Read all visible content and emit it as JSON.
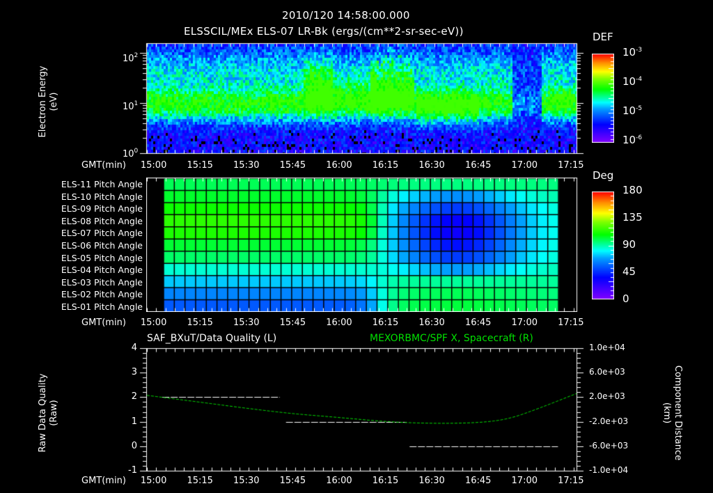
{
  "header": {
    "timestamp": "2010/120 14:58:00.000",
    "subtitle": "ELSSCIL/MEx ELS-07 LR-Bk  (ergs/(cm**2-sr-sec-eV))"
  },
  "time_axis": {
    "label": "GMT(min)",
    "ticks": [
      "15:00",
      "15:15",
      "15:30",
      "15:45",
      "16:00",
      "16:15",
      "16:30",
      "16:45",
      "17:00",
      "17:15"
    ]
  },
  "panel_energy": {
    "ylabel_line1": "Electron Energy",
    "ylabel_line2": "(eV)",
    "yticks": [
      {
        "base": "10",
        "exp": "2"
      },
      {
        "base": "10",
        "exp": "1"
      },
      {
        "base": "10",
        "exp": "0"
      }
    ],
    "colorbar": {
      "title": "DEF",
      "ticks": [
        {
          "base": "10",
          "exp": "-3"
        },
        {
          "base": "10",
          "exp": "-4"
        },
        {
          "base": "10",
          "exp": "-5"
        },
        {
          "base": "10",
          "exp": "-6"
        }
      ]
    }
  },
  "panel_pitch": {
    "rows": [
      "ELS-11 Pitch Angle",
      "ELS-10 Pitch Angle",
      "ELS-09 Pitch Angle",
      "ELS-08 Pitch Angle",
      "ELS-07 Pitch Angle",
      "ELS-06 Pitch Angle",
      "ELS-05 Pitch Angle",
      "ELS-04 Pitch Angle",
      "ELS-03 Pitch Angle",
      "ELS-02 Pitch Angle",
      "ELS-01 Pitch Angle"
    ],
    "colorbar": {
      "title": "Deg",
      "ticks": [
        "180",
        "135",
        "90",
        "45",
        "0"
      ]
    }
  },
  "panel_quality": {
    "left_title": "SAF_BXuT/Data Quality (L)",
    "right_title": "MEXORBMC/SPF X, Spacecraft (R)",
    "right_title_color": "#00e000",
    "ylabel_left_1": "Raw Data Quality",
    "ylabel_left_2": "(Raw)",
    "yticks_left": [
      "4",
      "3",
      "2",
      "1",
      "0",
      "-1"
    ],
    "ylabel_right_1": "Component Distance",
    "ylabel_right_2": "(km)",
    "yticks_right": [
      "1.0e+04",
      "6.0e+03",
      "2.0e+03",
      "-2.0e+03",
      "-6.0e+03",
      "-1.0e+04"
    ]
  },
  "chart_data": [
    {
      "type": "heatmap",
      "title": "ELSSCIL/MEx ELS-07 LR-Bk (ergs/(cm**2-sr-sec-eV))",
      "xlabel": "GMT(min)",
      "ylabel": "Electron Energy (eV)",
      "yscale": "log",
      "ylim": [
        1,
        150
      ],
      "xlim": [
        "14:58",
        "17:17"
      ],
      "colorbar": {
        "label": "DEF",
        "scale": "log",
        "range": [
          1e-06,
          0.001
        ]
      },
      "features": [
        {
          "time": "15:00-15:45",
          "energy_eV": "~5-20",
          "level": "~1e-5"
        },
        {
          "time": "15:47-15:55",
          "energy_eV": "~10-100",
          "level": "~1e-4"
        },
        {
          "time": "16:10-16:20",
          "energy_eV": "~15-100",
          "level": "~1e-4",
          "note": "bursty spikes"
        },
        {
          "time": "16:25-16:45",
          "energy_eV": "~4-30",
          "level": "~3e-5"
        },
        {
          "time": "16:58-17:05",
          "energy_eV": "all",
          "level": "low/gap"
        },
        {
          "time": "17:08-17:14",
          "energy_eV": "~10-20",
          "level": "~3e-5"
        }
      ]
    },
    {
      "type": "heatmap",
      "title": "Pitch Angle (Deg)",
      "xlabel": "GMT(min)",
      "categories": [
        "ELS-11",
        "ELS-10",
        "ELS-09",
        "ELS-08",
        "ELS-07",
        "ELS-06",
        "ELS-05",
        "ELS-04",
        "ELS-03",
        "ELS-02",
        "ELS-01"
      ],
      "colorbar": {
        "label": "Deg",
        "range": [
          0,
          180
        ]
      },
      "time_start": "15:03",
      "time_end": "17:10",
      "columns": 37,
      "series": [
        {
          "name": "ELS-11",
          "start": 100,
          "end": 95,
          "dip": 0
        },
        {
          "name": "ELS-10",
          "start": 105,
          "end": 92,
          "dip": 30
        },
        {
          "name": "ELS-09",
          "start": 112,
          "end": 88,
          "dip": 45
        },
        {
          "name": "ELS-08",
          "start": 118,
          "end": 88,
          "dip": 60
        },
        {
          "name": "ELS-07",
          "start": 115,
          "end": 88,
          "dip": 62
        },
        {
          "name": "ELS-06",
          "start": 104,
          "end": 88,
          "dip": 55
        },
        {
          "name": "ELS-05",
          "start": 98,
          "end": 88,
          "dip": 45
        },
        {
          "name": "ELS-04",
          "start": 85,
          "end": 90,
          "dip": 25
        },
        {
          "name": "ELS-03",
          "start": 72,
          "end": 92,
          "dip": 0
        },
        {
          "name": "ELS-02",
          "start": 60,
          "end": 95,
          "dip": -5
        },
        {
          "name": "ELS-01",
          "start": 50,
          "end": 98,
          "dip": -5
        }
      ]
    },
    {
      "type": "line",
      "title": "SAF_BXuT/Data Quality (L) ; MEXORBMC/SPF X, Spacecraft (R)",
      "xlabel": "GMT(min)",
      "ylabel": "Raw Data Quality (Raw)",
      "ylabel_right": "Component Distance (km)",
      "ylim": [
        -1,
        4
      ],
      "ylim_right": [
        -10000,
        10000
      ],
      "series": [
        {
          "name": "Data Quality",
          "axis": "left",
          "color": "#ffffff",
          "segments": [
            {
              "x": [
                "15:03",
                "15:41"
              ],
              "y": 2
            },
            {
              "x": [
                "15:43",
                "16:22"
              ],
              "y": 1
            },
            {
              "x": [
                "16:23",
                "17:11"
              ],
              "y": 0
            }
          ]
        },
        {
          "name": "SPF X",
          "axis": "right",
          "color": "#00e000",
          "x": [
            "14:58",
            "15:15",
            "15:30",
            "15:45",
            "16:00",
            "16:15",
            "16:30",
            "16:45",
            "16:55",
            "17:05",
            "17:17"
          ],
          "values": [
            2300,
            1200,
            200,
            -700,
            -1300,
            -2000,
            -2300,
            -2200,
            -1600,
            200,
            2600
          ]
        }
      ]
    }
  ]
}
